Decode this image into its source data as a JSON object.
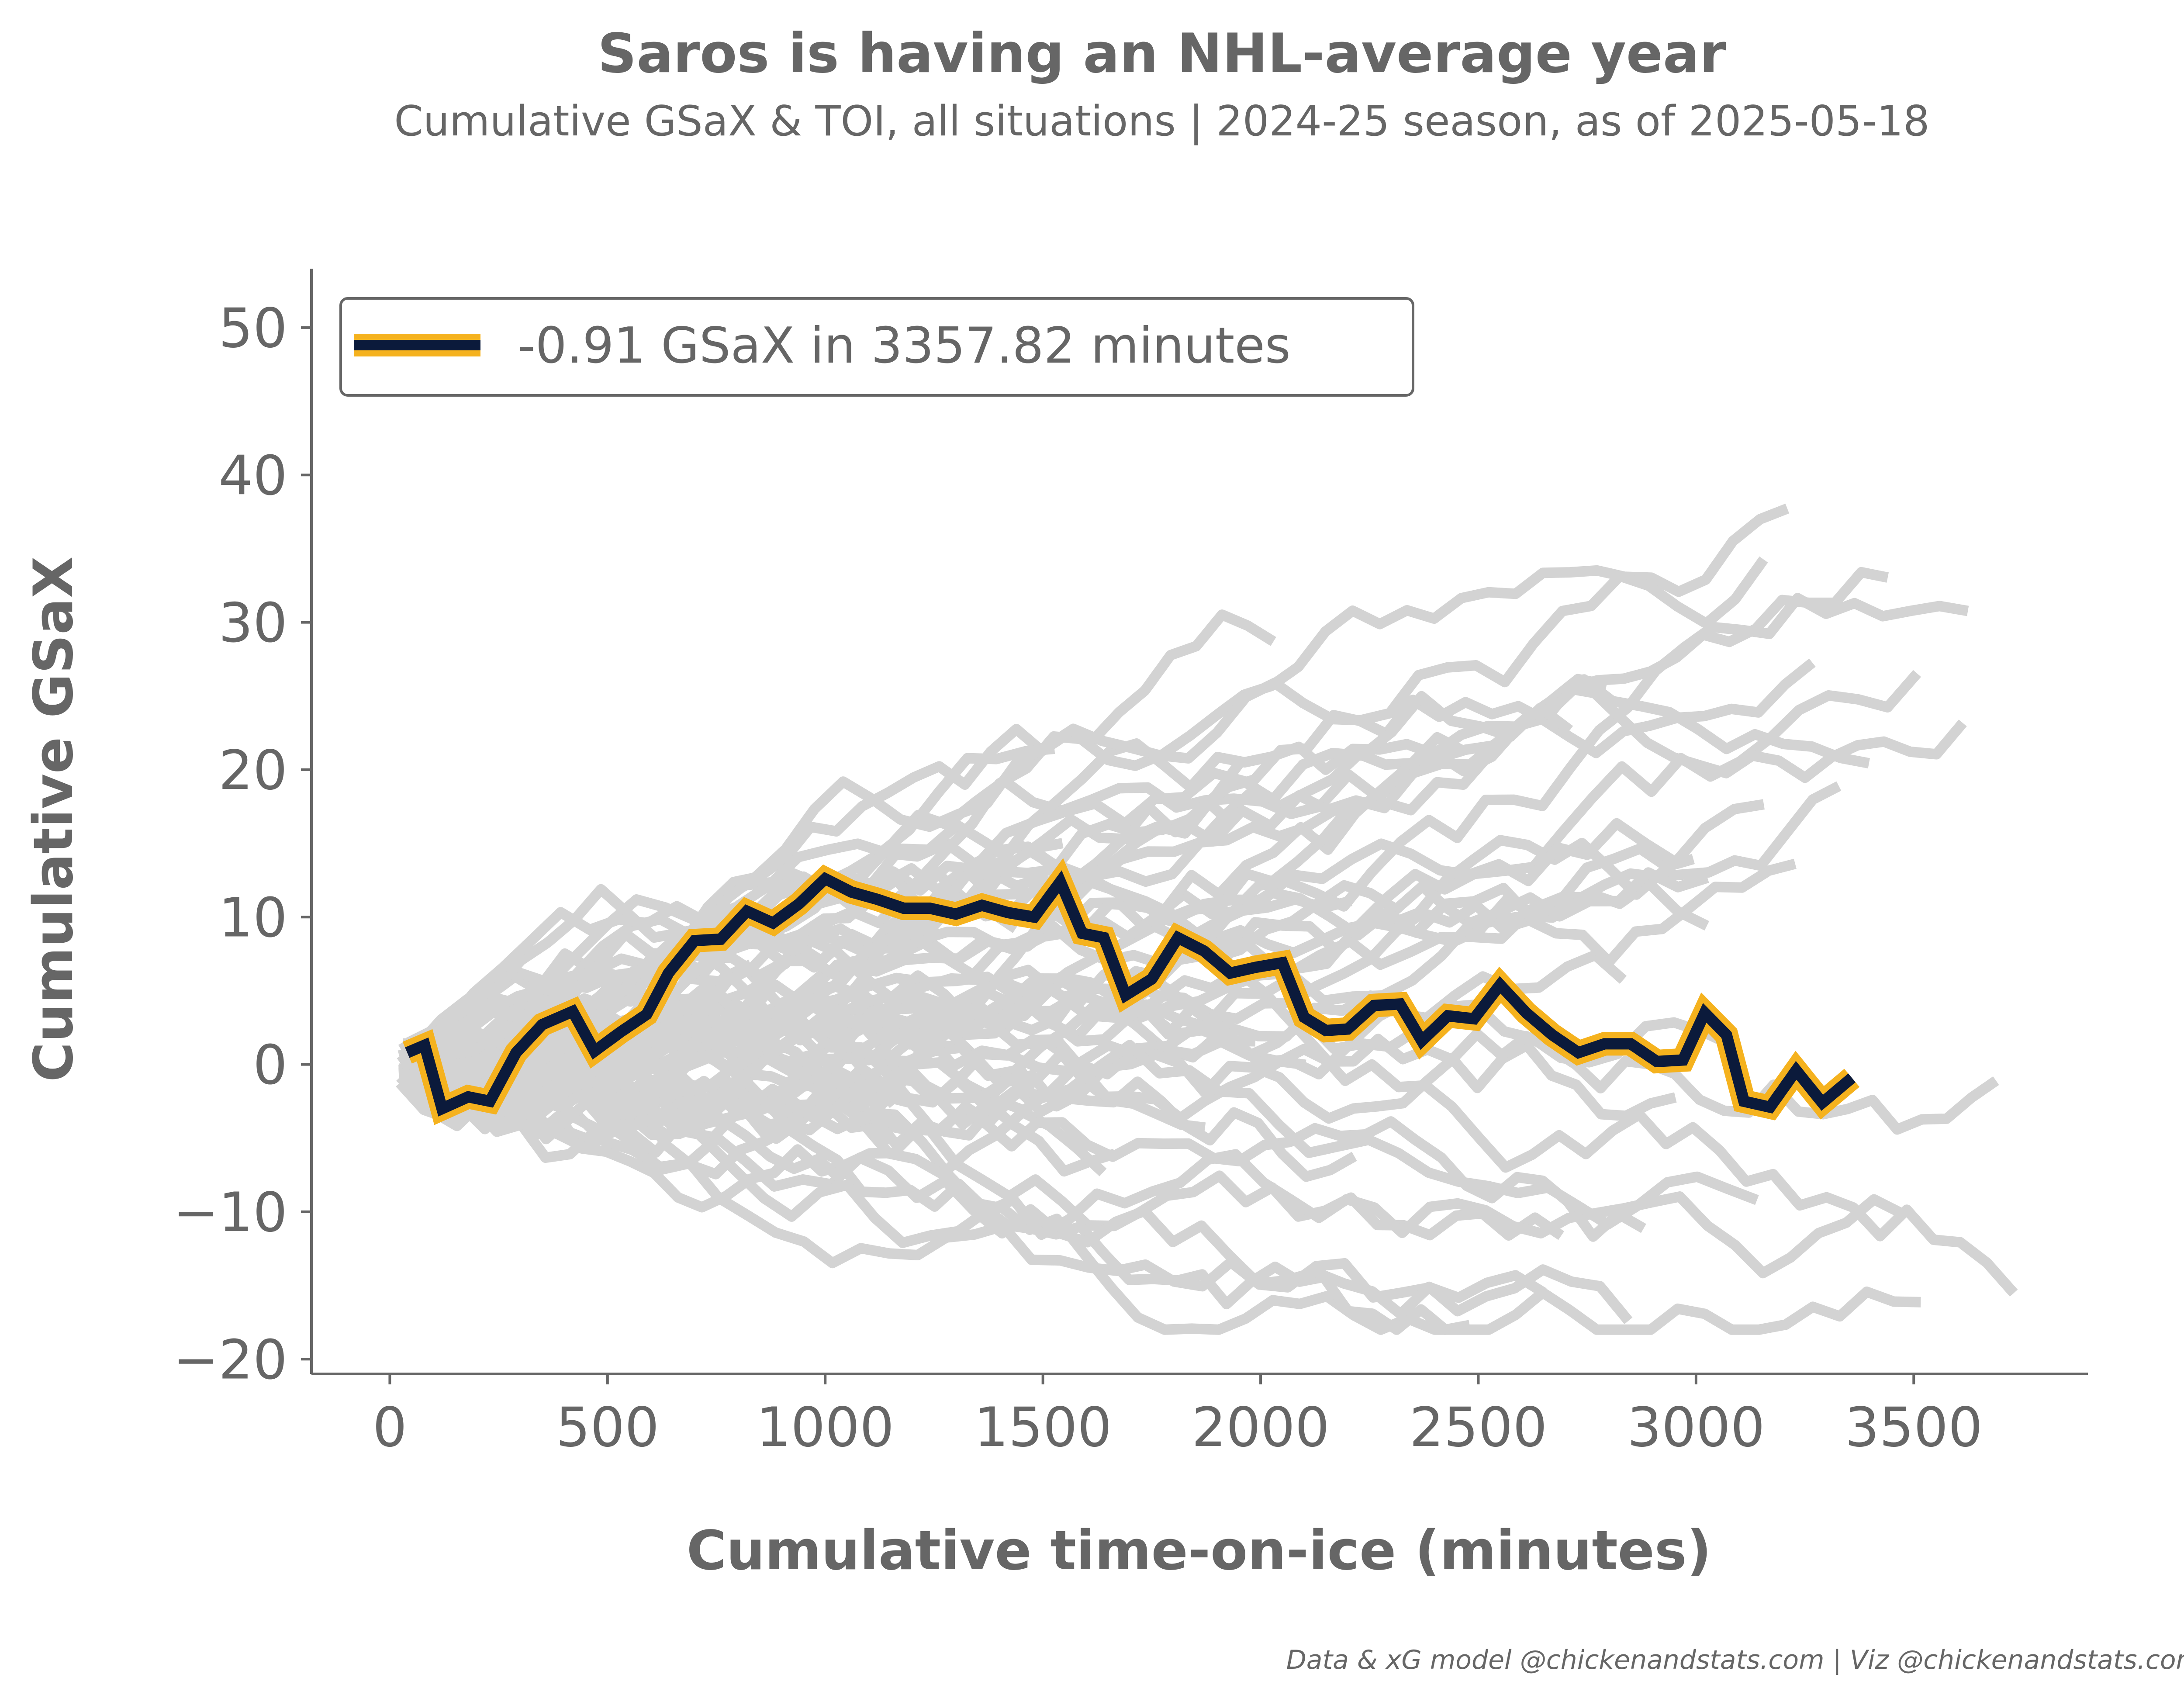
{
  "title": "Saros is having an NHL-average year",
  "subtitle": "Cumulative GSaX & TOI, all situations | 2024-25 season, as of 2025-05-18",
  "caption": "Data & xG model @chickenandstats.com | Viz @chickenandstats.com",
  "colors": {
    "highlight_line": "#0b1a3b",
    "highlight_outline": "#f5b21e",
    "background_lines": "#d3d3d3",
    "text": "#666666"
  },
  "chart_data": {
    "type": "line",
    "title": "Saros is having an NHL-average year",
    "subtitle": "Cumulative GSaX & TOI, all situations | 2024-25 season, as of 2025-05-18",
    "xlabel": "Cumulative time-on-ice (minutes)",
    "ylabel": "Cumulative GSaX",
    "xlim": [
      -180,
      3900
    ],
    "ylim": [
      -21,
      54
    ],
    "x_ticks": [
      0,
      500,
      1000,
      1500,
      2000,
      2500,
      3000,
      3500
    ],
    "x_tick_labels": [
      "0",
      "500",
      "1000",
      "1500",
      "2000",
      "2500",
      "3000",
      "3500"
    ],
    "y_ticks": [
      -20,
      -10,
      0,
      10,
      20,
      30,
      40,
      50
    ],
    "y_tick_labels": [
      "−20",
      "−10",
      "0",
      "10",
      "20",
      "30",
      "40",
      "50"
    ],
    "grid": false,
    "legend": {
      "position": "top-left",
      "entry": "-0.91 GSaX in 3357.82 minutes"
    },
    "highlight_series": {
      "x": [
        40,
        80,
        120,
        180,
        230,
        290,
        350,
        420,
        470,
        530,
        590,
        640,
        700,
        760,
        820,
        880,
        940,
        1000,
        1060,
        1120,
        1180,
        1240,
        1300,
        1360,
        1420,
        1480,
        1540,
        1590,
        1640,
        1690,
        1750,
        1810,
        1870,
        1930,
        1990,
        2050,
        2100,
        2150,
        2200,
        2260,
        2320,
        2370,
        2430,
        2490,
        2550,
        2610,
        2670,
        2730,
        2790,
        2850,
        2910,
        2970,
        3020,
        3070,
        3110,
        3170,
        3230,
        3290,
        3358
      ],
      "y": [
        0.8,
        1.3,
        -3.0,
        -2.2,
        -2.5,
        0.8,
        2.7,
        3.6,
        0.9,
        2.2,
        3.4,
        6.2,
        8.4,
        8.5,
        10.4,
        9.6,
        10.9,
        12.6,
        11.7,
        11.2,
        10.6,
        10.6,
        10.2,
        10.8,
        10.3,
        10.0,
        12.4,
        8.9,
        8.6,
        4.7,
        5.8,
        8.6,
        7.7,
        6.2,
        6.6,
        6.9,
        3.2,
        2.3,
        2.4,
        4.0,
        4.1,
        1.6,
        3.3,
        3.1,
        5.4,
        3.5,
        2.0,
        0.8,
        1.4,
        1.4,
        0.2,
        0.3,
        3.5,
        2.0,
        -2.5,
        -2.9,
        -0.4,
        -2.6,
        -0.91
      ]
    }
  }
}
